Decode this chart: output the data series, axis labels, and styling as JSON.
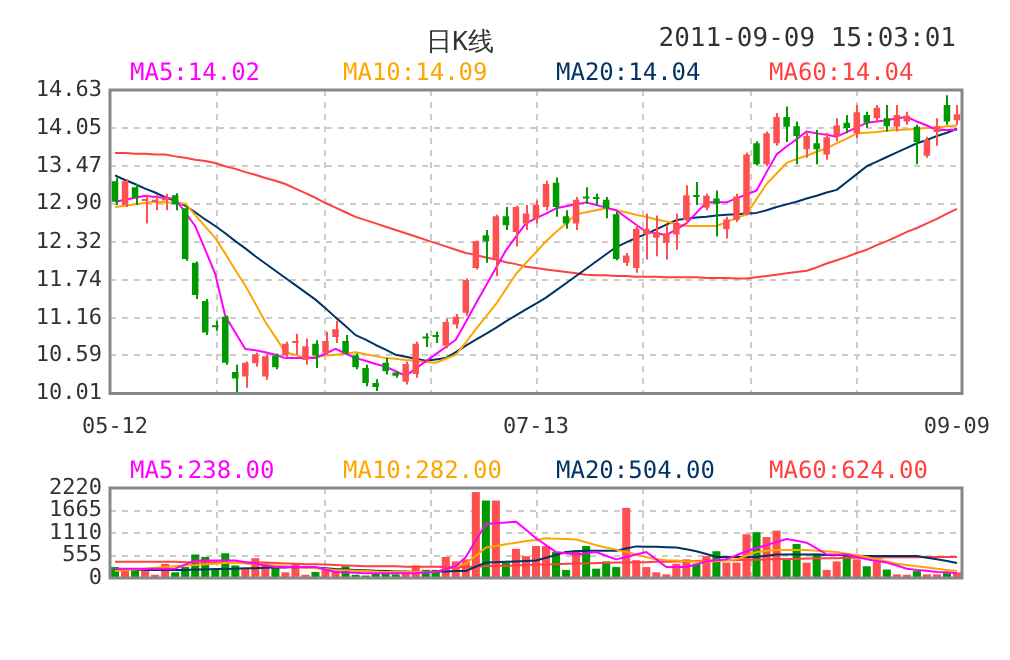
{
  "chart_data": [
    {
      "type": "candlestick",
      "title": "日K线",
      "annotations": [
        "2011-09-09 15:03:01"
      ],
      "categories": [
        "05-12",
        null,
        null,
        null,
        null,
        null,
        null,
        null,
        null,
        null,
        null,
        null,
        null,
        null,
        null,
        null,
        null,
        null,
        null,
        null,
        null,
        null,
        null,
        null,
        null,
        null,
        null,
        null,
        null,
        null,
        null,
        null,
        null,
        null,
        null,
        null,
        null,
        null,
        null,
        null,
        null,
        null,
        "07-13",
        null,
        null,
        null,
        null,
        null,
        null,
        null,
        null,
        null,
        null,
        null,
        null,
        null,
        null,
        null,
        null,
        null,
        null,
        null,
        null,
        null,
        null,
        null,
        null,
        null,
        null,
        null,
        null,
        null,
        null,
        null,
        null,
        null,
        null,
        null,
        null,
        null,
        null,
        null,
        null,
        null,
        "09-09"
      ],
      "ylim": [
        10.01,
        14.63
      ],
      "yticks": [
        10.01,
        10.59,
        11.16,
        11.74,
        12.32,
        {
          "value": 12.9,
          "label": "12.90"
        },
        13.47,
        14.05,
        14.63
      ],
      "grid": true,
      "legend": "top",
      "series": [
        {
          "ohlc": [
            [
              13.24,
              13.3,
              12.88,
              12.93
            ],
            [
              12.88,
              13.27,
              12.85,
              13.24
            ],
            [
              13.15,
              13.2,
              12.88,
              12.99
            ],
            [
              12.94,
              13.02,
              12.6,
              12.96
            ],
            [
              12.93,
              13.04,
              12.8,
              12.96
            ],
            [
              12.95,
              13.05,
              12.8,
              12.99
            ],
            [
              13.03,
              13.06,
              12.8,
              12.89
            ],
            [
              12.83,
              12.86,
              12.03,
              12.06
            ],
            [
              12.0,
              12.02,
              11.45,
              11.51
            ],
            [
              11.42,
              11.45,
              10.9,
              10.94
            ],
            [
              11.05,
              11.12,
              10.97,
              11.02
            ],
            [
              11.18,
              11.2,
              10.45,
              10.48
            ],
            [
              10.34,
              10.45,
              10.01,
              10.24
            ],
            [
              10.27,
              10.5,
              10.1,
              10.48
            ],
            [
              10.47,
              10.63,
              10.42,
              10.61
            ],
            [
              10.27,
              10.62,
              10.22,
              10.58
            ],
            [
              10.59,
              10.62,
              10.38,
              10.41
            ],
            [
              10.59,
              10.8,
              10.55,
              10.77
            ],
            [
              10.78,
              10.92,
              10.6,
              10.8
            ],
            [
              10.52,
              10.85,
              10.45,
              10.73
            ],
            [
              10.77,
              10.82,
              10.4,
              10.59
            ],
            [
              10.63,
              10.95,
              10.6,
              10.81
            ],
            [
              10.87,
              11.12,
              10.78,
              10.99
            ],
            [
              10.81,
              10.9,
              10.6,
              10.63
            ],
            [
              10.59,
              10.62,
              10.38,
              10.41
            ],
            [
              10.4,
              10.45,
              10.12,
              10.17
            ],
            [
              10.17,
              10.23,
              10.05,
              10.11
            ],
            [
              10.48,
              10.55,
              10.3,
              10.35
            ],
            [
              10.33,
              10.35,
              10.25,
              10.28
            ],
            [
              10.19,
              10.5,
              10.15,
              10.46
            ],
            [
              10.31,
              10.8,
              10.25,
              10.77
            ],
            [
              10.86,
              10.93,
              10.72,
              10.85
            ],
            [
              10.88,
              10.95,
              10.78,
              10.87
            ],
            [
              10.74,
              11.15,
              10.7,
              11.1
            ],
            [
              11.06,
              11.22,
              11.0,
              11.18
            ],
            [
              11.24,
              11.76,
              11.2,
              11.74
            ],
            [
              11.92,
              12.34,
              11.9,
              12.33
            ],
            [
              12.42,
              12.5,
              12.0,
              12.33
            ],
            [
              12.06,
              12.73,
              11.8,
              12.71
            ],
            [
              12.71,
              12.85,
              12.5,
              12.57
            ],
            [
              12.47,
              12.87,
              12.25,
              12.85
            ],
            [
              12.6,
              12.88,
              12.5,
              12.75
            ],
            [
              12.67,
              12.95,
              12.6,
              12.88
            ],
            [
              12.85,
              13.25,
              12.8,
              13.2
            ],
            [
              13.22,
              13.3,
              12.7,
              12.85
            ],
            [
              12.71,
              12.8,
              12.52,
              12.6
            ],
            [
              12.6,
              13.0,
              12.5,
              12.96
            ],
            [
              13.0,
              13.15,
              12.9,
              12.98
            ],
            [
              12.99,
              13.05,
              12.88,
              12.97
            ],
            [
              12.96,
              13.0,
              12.68,
              12.83
            ],
            [
              12.74,
              12.78,
              12.04,
              12.06
            ],
            [
              12.0,
              12.15,
              11.95,
              12.11
            ],
            [
              11.92,
              12.58,
              11.85,
              12.52
            ],
            [
              12.43,
              12.75,
              12.05,
              12.52
            ],
            [
              12.38,
              12.72,
              12.1,
              12.47
            ],
            [
              12.3,
              12.58,
              12.05,
              12.45
            ],
            [
              12.43,
              12.75,
              12.2,
              12.61
            ],
            [
              12.65,
              13.18,
              12.6,
              13.03
            ],
            [
              13.03,
              13.23,
              12.88,
              13.0
            ],
            [
              12.84,
              13.05,
              12.8,
              13.02
            ],
            [
              12.98,
              13.1,
              12.4,
              12.9
            ],
            [
              12.51,
              12.7,
              12.37,
              12.66
            ],
            [
              12.65,
              13.05,
              12.62,
              13.01
            ],
            [
              12.74,
              13.68,
              12.72,
              13.65
            ],
            [
              13.82,
              13.85,
              13.48,
              13.5
            ],
            [
              13.5,
              14.0,
              13.47,
              13.97
            ],
            [
              13.82,
              14.28,
              13.78,
              14.22
            ],
            [
              14.22,
              14.38,
              13.84,
              14.07
            ],
            [
              14.08,
              14.15,
              13.5,
              13.93
            ],
            [
              13.73,
              14.0,
              13.6,
              13.93
            ],
            [
              13.82,
              14.02,
              13.5,
              13.73
            ],
            [
              13.65,
              13.98,
              13.57,
              13.91
            ],
            [
              13.93,
              14.2,
              13.85,
              14.09
            ],
            [
              14.13,
              14.25,
              13.97,
              14.05
            ],
            [
              13.97,
              14.4,
              13.9,
              14.29
            ],
            [
              14.25,
              14.3,
              14.05,
              14.13
            ],
            [
              14.2,
              14.4,
              14.15,
              14.36
            ],
            [
              14.2,
              14.4,
              14.0,
              14.08
            ],
            [
              14.07,
              14.4,
              14.0,
              14.25
            ],
            [
              14.15,
              14.3,
              14.1,
              14.24
            ],
            [
              14.07,
              14.1,
              13.5,
              13.84
            ],
            [
              13.63,
              13.92,
              13.6,
              13.87
            ],
            [
              13.99,
              14.2,
              13.78,
              14.08
            ],
            [
              14.4,
              14.55,
              14.1,
              14.15
            ],
            [
              14.17,
              14.4,
              14.1,
              14.26
            ]
          ],
          "colors": [
            "#009900",
            "#ff5050",
            "#009900",
            "#ff5050",
            "#ff5050",
            "#ff5050",
            "#009900",
            "#009900",
            "#009900",
            "#009900",
            "#009900",
            "#009900",
            "#009900",
            "#ff5050",
            "#ff5050",
            "#ff5050",
            "#009900",
            "#ff5050",
            "#ff5050",
            "#ff5050",
            "#009900",
            "#ff5050",
            "#ff5050",
            "#009900",
            "#009900",
            "#009900",
            "#009900",
            "#009900",
            "#009900",
            "#ff5050",
            "#ff5050",
            "#009900",
            "#009900",
            "#ff5050",
            "#ff5050",
            "#ff5050",
            "#ff5050",
            "#009900",
            "#ff5050",
            "#009900",
            "#ff5050",
            "#ff5050",
            "#ff5050",
            "#ff5050",
            "#009900",
            "#009900",
            "#ff5050",
            "#009900",
            "#009900",
            "#009900",
            "#009900",
            "#ff5050",
            "#ff5050",
            "#ff5050",
            "#ff5050",
            "#ff5050",
            "#ff5050",
            "#ff5050",
            "#009900",
            "#ff5050",
            "#009900",
            "#ff5050",
            "#ff5050",
            "#ff5050",
            "#009900",
            "#ff5050",
            "#ff5050",
            "#009900",
            "#009900",
            "#ff5050",
            "#009900",
            "#ff5050",
            "#ff5050",
            "#009900",
            "#ff5050",
            "#009900",
            "#ff5050",
            "#009900",
            "#ff5050",
            "#ff5050",
            "#009900",
            "#ff5050",
            "#ff5050",
            "#009900",
            "#ff5050"
          ]
        },
        {
          "type": "line",
          "name": "MA5:14.02",
          "color": "#ff00ff",
          "values": [
            12.93,
            12.96,
            12.99,
            13.02,
            13.0,
            12.99,
            12.97,
            12.77,
            12.56,
            12.2,
            11.83,
            11.19,
            10.94,
            10.69,
            10.67,
            10.64,
            10.6,
            10.55,
            10.55,
            10.55,
            10.55,
            10.62,
            10.69,
            10.62,
            10.55,
            10.51,
            10.46,
            10.42,
            10.35,
            10.28,
            10.39,
            10.5,
            10.61,
            10.72,
            10.83,
            11.1,
            11.38,
            11.65,
            11.92,
            12.19,
            12.4,
            12.6,
            12.68,
            12.75,
            12.83,
            12.86,
            12.89,
            12.92,
            12.88,
            12.84,
            12.8,
            12.69,
            12.58,
            12.47,
            12.45,
            12.42,
            12.51,
            12.6,
            12.76,
            12.92,
            12.92,
            12.92,
            12.98,
            13.04,
            13.1,
            13.38,
            13.65,
            13.77,
            13.88,
            14.0,
            13.97,
            13.95,
            13.92,
            13.99,
            14.06,
            14.13,
            14.15,
            14.17,
            14.2,
            14.22,
            14.15,
            14.09,
            14.02,
            14.02,
            14.02
          ]
        },
        {
          "type": "line",
          "name": "MA10:14.09",
          "color": "#ffa500",
          "values": [
            12.85,
            12.87,
            12.89,
            12.91,
            12.93,
            12.92,
            12.91,
            12.9,
            12.73,
            12.55,
            12.38,
            12.14,
            11.89,
            11.65,
            11.38,
            11.1,
            10.87,
            10.64,
            10.6,
            10.55,
            10.57,
            10.59,
            10.6,
            10.62,
            10.64,
            10.61,
            10.58,
            10.55,
            10.54,
            10.52,
            10.51,
            10.49,
            10.48,
            10.54,
            10.6,
            10.79,
            10.99,
            11.18,
            11.37,
            11.6,
            11.83,
            12.0,
            12.16,
            12.33,
            12.47,
            12.6,
            12.74,
            12.77,
            12.8,
            12.83,
            12.8,
            12.77,
            12.73,
            12.7,
            12.66,
            12.63,
            12.59,
            12.56,
            12.56,
            12.56,
            12.56,
            12.62,
            12.68,
            12.74,
            12.97,
            13.2,
            13.36,
            13.52,
            13.58,
            13.63,
            13.69,
            13.74,
            13.82,
            13.89,
            13.97,
            13.98,
            13.99,
            14.01,
            14.02,
            14.03,
            14.04,
            14.05,
            14.06,
            14.08,
            14.09
          ]
        },
        {
          "type": "line",
          "name": "MA20:14.04",
          "color": "#003366",
          "values": [
            13.33,
            13.26,
            13.2,
            13.13,
            13.07,
            13.0,
            12.94,
            12.87,
            12.77,
            12.66,
            12.56,
            12.45,
            12.33,
            12.22,
            12.1,
            11.99,
            11.88,
            11.77,
            11.66,
            11.55,
            11.44,
            11.31,
            11.17,
            11.04,
            10.9,
            10.83,
            10.75,
            10.68,
            10.6,
            10.57,
            10.54,
            10.51,
            10.53,
            10.55,
            10.64,
            10.74,
            10.83,
            10.92,
            11.01,
            11.11,
            11.2,
            11.29,
            11.38,
            11.47,
            11.58,
            11.69,
            11.8,
            11.91,
            12.02,
            12.13,
            12.24,
            12.31,
            12.38,
            12.44,
            12.51,
            12.58,
            12.65,
            12.67,
            12.69,
            12.7,
            12.72,
            12.73,
            12.74,
            12.75,
            12.76,
            12.8,
            12.85,
            12.89,
            12.93,
            12.98,
            13.02,
            13.07,
            13.11,
            13.23,
            13.35,
            13.47,
            13.54,
            13.61,
            13.68,
            13.75,
            13.82,
            13.87,
            13.93,
            13.98,
            14.04
          ]
        },
        {
          "type": "line",
          "name": "MA60:14.04",
          "color": "#ff4040",
          "values": [
            13.67,
            13.67,
            13.66,
            13.66,
            13.65,
            13.65,
            13.62,
            13.6,
            13.57,
            13.55,
            13.52,
            13.47,
            13.43,
            13.38,
            13.34,
            13.29,
            13.25,
            13.2,
            13.13,
            13.06,
            12.99,
            12.91,
            12.84,
            12.77,
            12.7,
            12.65,
            12.6,
            12.55,
            12.5,
            12.45,
            12.4,
            12.35,
            12.3,
            12.25,
            12.2,
            12.15,
            12.12,
            12.08,
            12.05,
            12.01,
            11.98,
            11.94,
            11.92,
            11.9,
            11.88,
            11.86,
            11.84,
            11.82,
            11.81,
            11.81,
            11.8,
            11.8,
            11.79,
            11.79,
            11.79,
            11.78,
            11.78,
            11.78,
            11.78,
            11.77,
            11.77,
            11.77,
            11.76,
            11.76,
            11.78,
            11.8,
            11.82,
            11.84,
            11.86,
            11.88,
            11.93,
            11.99,
            12.04,
            12.09,
            12.15,
            12.2,
            12.27,
            12.33,
            12.4,
            12.47,
            12.53,
            12.6,
            12.67,
            12.75,
            12.82
          ]
        }
      ]
    },
    {
      "type": "bar",
      "tick_labels": "y",
      "categories": [
        null,
        null,
        null,
        null,
        null,
        null,
        null,
        null,
        null,
        null,
        null,
        null,
        null,
        null,
        null,
        null,
        null,
        null,
        null,
        null,
        null,
        null,
        null,
        null,
        null,
        null,
        null,
        null,
        null,
        null,
        null,
        null,
        null,
        null,
        null,
        null,
        null,
        null,
        null,
        null,
        null,
        null,
        null,
        null,
        null,
        null,
        null,
        null,
        null,
        null,
        null,
        null,
        null,
        null,
        null,
        null,
        null,
        null,
        null,
        null,
        null,
        null,
        null,
        null,
        null,
        null,
        null,
        null,
        null,
        null,
        null,
        null,
        null,
        null,
        null,
        null,
        null,
        null,
        null,
        null,
        null,
        null,
        null,
        null,
        null
      ],
      "ylim": [
        0,
        2220
      ],
      "yticks": [
        0,
        555,
        1110,
        1665,
        2220
      ],
      "grid": true,
      "legend": "top",
      "series": [
        {
          "values": [
            270,
            200,
            200,
            170,
            80,
            350,
            140,
            270,
            580,
            520,
            230,
            610,
            310,
            230,
            490,
            370,
            270,
            140,
            350,
            80,
            150,
            200,
            170,
            290,
            80,
            60,
            120,
            170,
            90,
            120,
            310,
            200,
            200,
            520,
            410,
            460,
            2120,
            1910,
            1910,
            380,
            720,
            540,
            790,
            790,
            640,
            200,
            690,
            790,
            230,
            410,
            270,
            1730,
            440,
            270,
            140,
            90,
            350,
            460,
            350,
            540,
            660,
            380,
            380,
            1080,
            1130,
            1010,
            1170,
            460,
            840,
            380,
            600,
            200,
            410,
            600,
            460,
            290,
            410,
            210,
            90,
            80,
            170,
            90,
            90,
            120,
            140
          ],
          "colors": [
            "#009900",
            "#ff5050",
            "#009900",
            "#ff5050",
            "#ff5050",
            "#ff5050",
            "#009900",
            "#009900",
            "#009900",
            "#009900",
            "#009900",
            "#009900",
            "#009900",
            "#ff5050",
            "#ff5050",
            "#ff5050",
            "#009900",
            "#ff5050",
            "#ff5050",
            "#ff5050",
            "#009900",
            "#ff5050",
            "#ff5050",
            "#009900",
            "#009900",
            "#009900",
            "#009900",
            "#009900",
            "#009900",
            "#ff5050",
            "#ff5050",
            "#009900",
            "#009900",
            "#ff5050",
            "#ff5050",
            "#ff5050",
            "#ff5050",
            "#009900",
            "#ff5050",
            "#009900",
            "#ff5050",
            "#ff5050",
            "#ff5050",
            "#ff5050",
            "#009900",
            "#009900",
            "#ff5050",
            "#009900",
            "#009900",
            "#009900",
            "#009900",
            "#ff5050",
            "#ff5050",
            "#ff5050",
            "#ff5050",
            "#ff5050",
            "#ff5050",
            "#ff5050",
            "#009900",
            "#ff5050",
            "#009900",
            "#ff5050",
            "#ff5050",
            "#ff5050",
            "#009900",
            "#ff5050",
            "#ff5050",
            "#009900",
            "#009900",
            "#ff5050",
            "#009900",
            "#ff5050",
            "#ff5050",
            "#009900",
            "#ff5050",
            "#009900",
            "#ff5050",
            "#009900",
            "#ff5050",
            "#ff5050",
            "#009900",
            "#ff5050",
            "#ff5050",
            "#009900",
            "#ff5050"
          ]
        },
        {
          "type": "line",
          "name": "MA5:238.00",
          "color": "#ff00ff",
          "values": [
            230,
            230,
            230,
            230,
            230,
            230,
            230,
            330,
            430,
            430,
            430,
            430,
            430,
            390,
            350,
            310,
            270,
            270,
            270,
            270,
            270,
            210,
            150,
            140,
            130,
            120,
            120,
            120,
            120,
            120,
            120,
            140,
            150,
            220,
            290,
            520,
            930,
            1330,
            1350,
            1370,
            1390,
            1190,
            980,
            810,
            640,
            610,
            580,
            610,
            640,
            550,
            460,
            520,
            580,
            640,
            460,
            270,
            270,
            270,
            340,
            410,
            440,
            460,
            560,
            660,
            740,
            810,
            890,
            960,
            920,
            870,
            730,
            580,
            580,
            580,
            520,
            460,
            420,
            380,
            310,
            230,
            200,
            180,
            150,
            140,
            120
          ]
        },
        {
          "type": "line",
          "name": "MA10:282.00",
          "color": "#ffa500",
          "values": [
            170,
            190,
            210,
            230,
            250,
            270,
            290,
            310,
            320,
            340,
            350,
            370,
            380,
            360,
            340,
            330,
            310,
            290,
            270,
            250,
            240,
            220,
            200,
            190,
            180,
            170,
            160,
            150,
            150,
            150,
            150,
            150,
            150,
            220,
            280,
            350,
            550,
            750,
            790,
            830,
            870,
            910,
            940,
            980,
            970,
            960,
            950,
            880,
            810,
            750,
            700,
            640,
            580,
            520,
            460,
            440,
            430,
            410,
            410,
            410,
            410,
            440,
            460,
            550,
            640,
            670,
            690,
            690,
            690,
            690,
            670,
            660,
            640,
            600,
            560,
            520,
            460,
            410,
            350,
            320,
            290,
            260,
            230,
            200,
            170
          ]
        },
        {
          "type": "line",
          "name": "MA20:504.00",
          "color": "#003366",
          "values": [
            210,
            210,
            210,
            200,
            200,
            200,
            200,
            200,
            210,
            210,
            220,
            220,
            230,
            240,
            240,
            250,
            260,
            260,
            270,
            260,
            250,
            240,
            220,
            210,
            200,
            190,
            180,
            170,
            160,
            160,
            150,
            150,
            160,
            160,
            170,
            170,
            280,
            380,
            390,
            400,
            410,
            420,
            430,
            500,
            570,
            640,
            660,
            670,
            670,
            670,
            670,
            730,
            780,
            770,
            770,
            760,
            750,
            710,
            660,
            590,
            520,
            520,
            520,
            520,
            520,
            550,
            580,
            580,
            580,
            580,
            580,
            570,
            570,
            560,
            550,
            540,
            540,
            540,
            540,
            540,
            540,
            500,
            460,
            420,
            370
          ]
        },
        {
          "type": "line",
          "name": "MA60:624.00",
          "color": "#ff4040",
          "values": [
            400,
            400,
            400,
            400,
            400,
            400,
            400,
            390,
            390,
            390,
            390,
            390,
            380,
            380,
            380,
            380,
            370,
            360,
            350,
            340,
            340,
            330,
            320,
            310,
            300,
            290,
            290,
            290,
            290,
            280,
            280,
            280,
            280,
            270,
            270,
            270,
            280,
            290,
            300,
            300,
            310,
            320,
            330,
            330,
            340,
            350,
            360,
            360,
            370,
            370,
            380,
            380,
            390,
            390,
            400,
            400,
            410,
            410,
            420,
            430,
            430,
            440,
            440,
            450,
            450,
            460,
            460,
            470,
            470,
            480,
            480,
            490,
            490,
            500,
            500,
            500,
            500,
            510,
            510,
            510,
            510,
            520,
            520,
            520,
            520
          ]
        }
      ]
    }
  ]
}
